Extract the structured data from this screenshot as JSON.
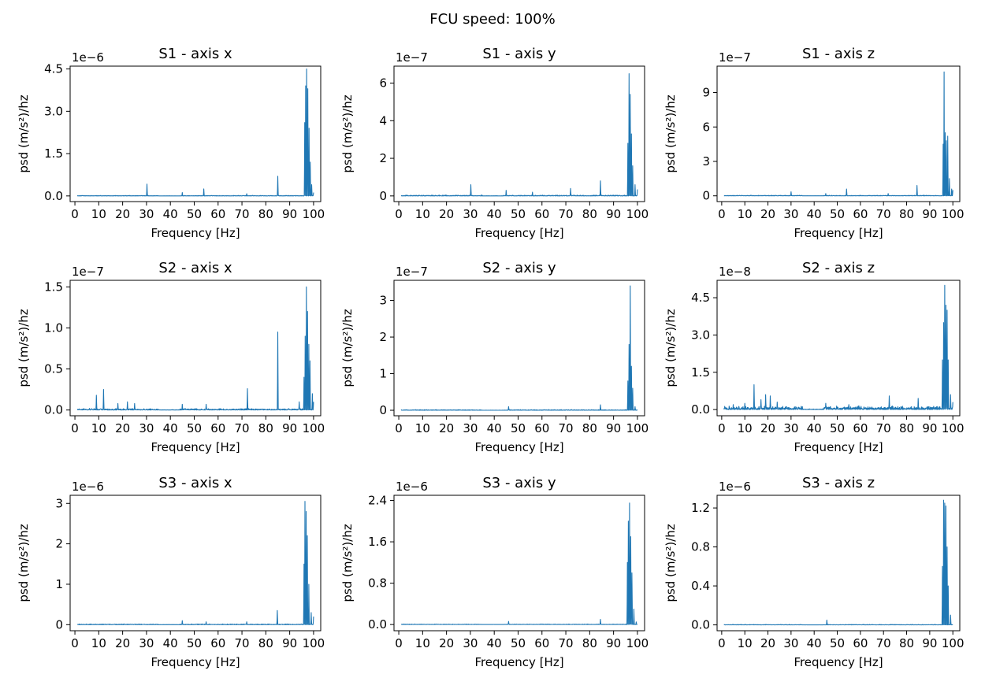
{
  "suptitle": "FCU speed: 100%",
  "line_color": "#1f77b4",
  "chart_data": [
    {
      "type": "line",
      "title": "S1 - axis x",
      "xlabel": "Frequency [Hz]",
      "ylabel": "psd (m/s²)/hz",
      "offset_text": "1e−6",
      "xlim": [
        -2,
        103
      ],
      "xticks": [
        0,
        10,
        20,
        30,
        40,
        50,
        60,
        70,
        80,
        90,
        100
      ],
      "ylim": [
        -0.2,
        4.6
      ],
      "yticks": [
        0.0,
        1.5,
        3.0,
        4.5
      ],
      "ytick_labels": [
        "0.0",
        "1.5",
        "3.0",
        "4.5"
      ],
      "noise": 0.02,
      "peaks": [
        [
          30.2,
          0.42
        ],
        [
          45,
          0.12
        ],
        [
          54,
          0.25
        ],
        [
          72,
          0.08
        ],
        [
          85,
          0.7
        ],
        [
          96.3,
          2.6
        ],
        [
          96.7,
          3.9
        ],
        [
          97.1,
          4.5
        ],
        [
          97.6,
          3.8
        ],
        [
          98.1,
          2.4
        ],
        [
          98.6,
          1.2
        ],
        [
          99.2,
          0.4
        ],
        [
          100,
          0.12
        ]
      ]
    },
    {
      "type": "line",
      "title": "S1 - axis y",
      "xlabel": "Frequency [Hz]",
      "ylabel": "psd (m/s²)/hz",
      "offset_text": "1e−7",
      "xlim": [
        -2,
        103
      ],
      "xticks": [
        0,
        10,
        20,
        30,
        40,
        50,
        60,
        70,
        80,
        90,
        100
      ],
      "ylim": [
        -0.3,
        6.9
      ],
      "yticks": [
        0,
        2,
        4,
        6
      ],
      "ytick_labels": [
        "0",
        "2",
        "4",
        "6"
      ],
      "noise": 0.05,
      "peaks": [
        [
          30.2,
          0.6
        ],
        [
          45,
          0.3
        ],
        [
          56,
          0.2
        ],
        [
          72,
          0.4
        ],
        [
          84.5,
          0.8
        ],
        [
          96,
          2.8
        ],
        [
          96.5,
          6.5
        ],
        [
          97,
          5.4
        ],
        [
          97.5,
          3.3
        ],
        [
          98,
          1.6
        ],
        [
          99,
          0.6
        ],
        [
          100,
          0.35
        ]
      ]
    },
    {
      "type": "line",
      "title": "S1 - axis z",
      "xlabel": "Frequency [Hz]",
      "ylabel": "psd (m/s²)/hz",
      "offset_text": "1e−7",
      "xlim": [
        -2,
        103
      ],
      "xticks": [
        0,
        10,
        20,
        30,
        40,
        50,
        60,
        70,
        80,
        90,
        100
      ],
      "ylim": [
        -0.5,
        11.3
      ],
      "yticks": [
        0,
        3,
        6,
        9
      ],
      "ytick_labels": [
        "0",
        "3",
        "6",
        "9"
      ],
      "noise": 0.05,
      "peaks": [
        [
          30,
          0.35
        ],
        [
          45,
          0.2
        ],
        [
          54,
          0.6
        ],
        [
          72,
          0.2
        ],
        [
          84.5,
          0.9
        ],
        [
          95.8,
          4.5
        ],
        [
          96.2,
          10.8
        ],
        [
          96.7,
          5.5
        ],
        [
          97.2,
          4.8
        ],
        [
          97.8,
          5.2
        ],
        [
          98.5,
          1.5
        ],
        [
          99.5,
          0.6
        ],
        [
          100,
          0.5
        ]
      ]
    },
    {
      "type": "line",
      "title": "S2 - axis x",
      "xlabel": "Frequency [Hz]",
      "ylabel": "psd (m/s²)/hz",
      "offset_text": "1e−7",
      "xlim": [
        -2,
        103
      ],
      "xticks": [
        0,
        10,
        20,
        30,
        40,
        50,
        60,
        70,
        80,
        90,
        100
      ],
      "ylim": [
        -0.07,
        1.58
      ],
      "yticks": [
        0.0,
        0.5,
        1.0,
        1.5
      ],
      "ytick_labels": [
        "0.0",
        "0.5",
        "1.0",
        "1.5"
      ],
      "noise": 0.02,
      "peaks": [
        [
          9,
          0.18
        ],
        [
          12,
          0.25
        ],
        [
          18,
          0.08
        ],
        [
          22,
          0.1
        ],
        [
          25,
          0.08
        ],
        [
          45,
          0.07
        ],
        [
          55,
          0.07
        ],
        [
          72.3,
          0.26
        ],
        [
          85,
          0.95
        ],
        [
          94,
          0.1
        ],
        [
          96,
          0.4
        ],
        [
          96.5,
          0.9
        ],
        [
          97,
          1.5
        ],
        [
          97.5,
          1.2
        ],
        [
          98,
          0.8
        ],
        [
          98.5,
          0.6
        ],
        [
          99.5,
          0.2
        ],
        [
          100,
          0.1
        ]
      ]
    },
    {
      "type": "line",
      "title": "S2 - axis y",
      "xlabel": "Frequency [Hz]",
      "ylabel": "psd (m/s²)/hz",
      "offset_text": "1e−7",
      "xlim": [
        -2,
        103
      ],
      "xticks": [
        0,
        10,
        20,
        30,
        40,
        50,
        60,
        70,
        80,
        90,
        100
      ],
      "ylim": [
        -0.15,
        3.55
      ],
      "yticks": [
        0,
        1,
        2,
        3
      ],
      "ytick_labels": [
        "0",
        "1",
        "2",
        "3"
      ],
      "noise": 0.02,
      "peaks": [
        [
          46,
          0.1
        ],
        [
          84.5,
          0.15
        ],
        [
          96,
          0.8
        ],
        [
          96.5,
          1.8
        ],
        [
          97,
          3.4
        ],
        [
          97.5,
          1.2
        ],
        [
          98,
          0.6
        ],
        [
          99,
          0.1
        ]
      ]
    },
    {
      "type": "line",
      "title": "S2 - axis z",
      "xlabel": "Frequency [Hz]",
      "ylabel": "psd (m/s²)/hz",
      "offset_text": "1e−8",
      "xlim": [
        -2,
        103
      ],
      "xticks": [
        0,
        10,
        20,
        30,
        40,
        50,
        60,
        70,
        80,
        90,
        100
      ],
      "ylim": [
        -0.25,
        5.2
      ],
      "yticks": [
        0.0,
        1.5,
        3.0,
        4.5
      ],
      "ytick_labels": [
        "0.0",
        "1.5",
        "3.0",
        "4.5"
      ],
      "noise": 0.15,
      "peaks": [
        [
          5,
          0.2
        ],
        [
          10,
          0.25
        ],
        [
          14,
          1.0
        ],
        [
          17,
          0.4
        ],
        [
          19,
          0.6
        ],
        [
          21,
          0.55
        ],
        [
          24,
          0.3
        ],
        [
          45,
          0.25
        ],
        [
          55,
          0.2
        ],
        [
          72.5,
          0.55
        ],
        [
          85,
          0.45
        ],
        [
          95.5,
          2.0
        ],
        [
          96,
          3.5
        ],
        [
          96.5,
          5.0
        ],
        [
          97,
          4.2
        ],
        [
          97.5,
          4.0
        ],
        [
          98,
          2.0
        ],
        [
          99,
          0.6
        ],
        [
          100,
          0.3
        ]
      ]
    },
    {
      "type": "line",
      "title": "S3 - axis x",
      "xlabel": "Frequency [Hz]",
      "ylabel": "psd (m/s²)/hz",
      "offset_text": "1e−6",
      "xlim": [
        -2,
        103
      ],
      "xticks": [
        0,
        10,
        20,
        30,
        40,
        50,
        60,
        70,
        80,
        90,
        100
      ],
      "ylim": [
        -0.15,
        3.2
      ],
      "yticks": [
        0,
        1,
        2,
        3
      ],
      "ytick_labels": [
        "0",
        "1",
        "2",
        "3"
      ],
      "noise": 0.02,
      "peaks": [
        [
          45,
          0.1
        ],
        [
          55,
          0.07
        ],
        [
          72,
          0.07
        ],
        [
          84.8,
          0.35
        ],
        [
          96,
          1.5
        ],
        [
          96.4,
          3.05
        ],
        [
          96.9,
          2.8
        ],
        [
          97.4,
          2.2
        ],
        [
          98,
          1.0
        ],
        [
          99,
          0.3
        ],
        [
          100,
          0.2
        ]
      ]
    },
    {
      "type": "line",
      "title": "S3 - axis y",
      "xlabel": "Frequency [Hz]",
      "ylabel": "psd (m/s²)/hz",
      "offset_text": "1e−6",
      "xlim": [
        -2,
        103
      ],
      "xticks": [
        0,
        10,
        20,
        30,
        40,
        50,
        60,
        70,
        80,
        90,
        100
      ],
      "ylim": [
        -0.12,
        2.5
      ],
      "yticks": [
        0.0,
        0.8,
        1.6,
        2.4
      ],
      "ytick_labels": [
        "0.0",
        "0.8",
        "1.6",
        "2.4"
      ],
      "noise": 0.01,
      "peaks": [
        [
          46,
          0.06
        ],
        [
          84.5,
          0.1
        ],
        [
          95.8,
          1.2
        ],
        [
          96.2,
          2.0
        ],
        [
          96.7,
          2.35
        ],
        [
          97.2,
          1.7
        ],
        [
          97.7,
          1.0
        ],
        [
          98.5,
          0.3
        ],
        [
          99.5,
          0.05
        ]
      ]
    },
    {
      "type": "line",
      "title": "S3 - axis z",
      "xlabel": "Frequency [Hz]",
      "ylabel": "psd (m/s²)/hz",
      "offset_text": "1e−6",
      "xlim": [
        -2,
        103
      ],
      "xticks": [
        0,
        10,
        20,
        30,
        40,
        50,
        60,
        70,
        80,
        90,
        100
      ],
      "ylim": [
        -0.06,
        1.33
      ],
      "yticks": [
        0.0,
        0.4,
        0.8,
        1.2
      ],
      "ytick_labels": [
        "0.0",
        "0.4",
        "0.8",
        "1.2"
      ],
      "noise": 0.005,
      "peaks": [
        [
          45.5,
          0.05
        ],
        [
          95.5,
          0.6
        ],
        [
          96,
          1.28
        ],
        [
          96.5,
          1.25
        ],
        [
          97,
          1.22
        ],
        [
          97.5,
          0.8
        ],
        [
          98,
          0.4
        ],
        [
          99,
          0.1
        ]
      ]
    }
  ]
}
